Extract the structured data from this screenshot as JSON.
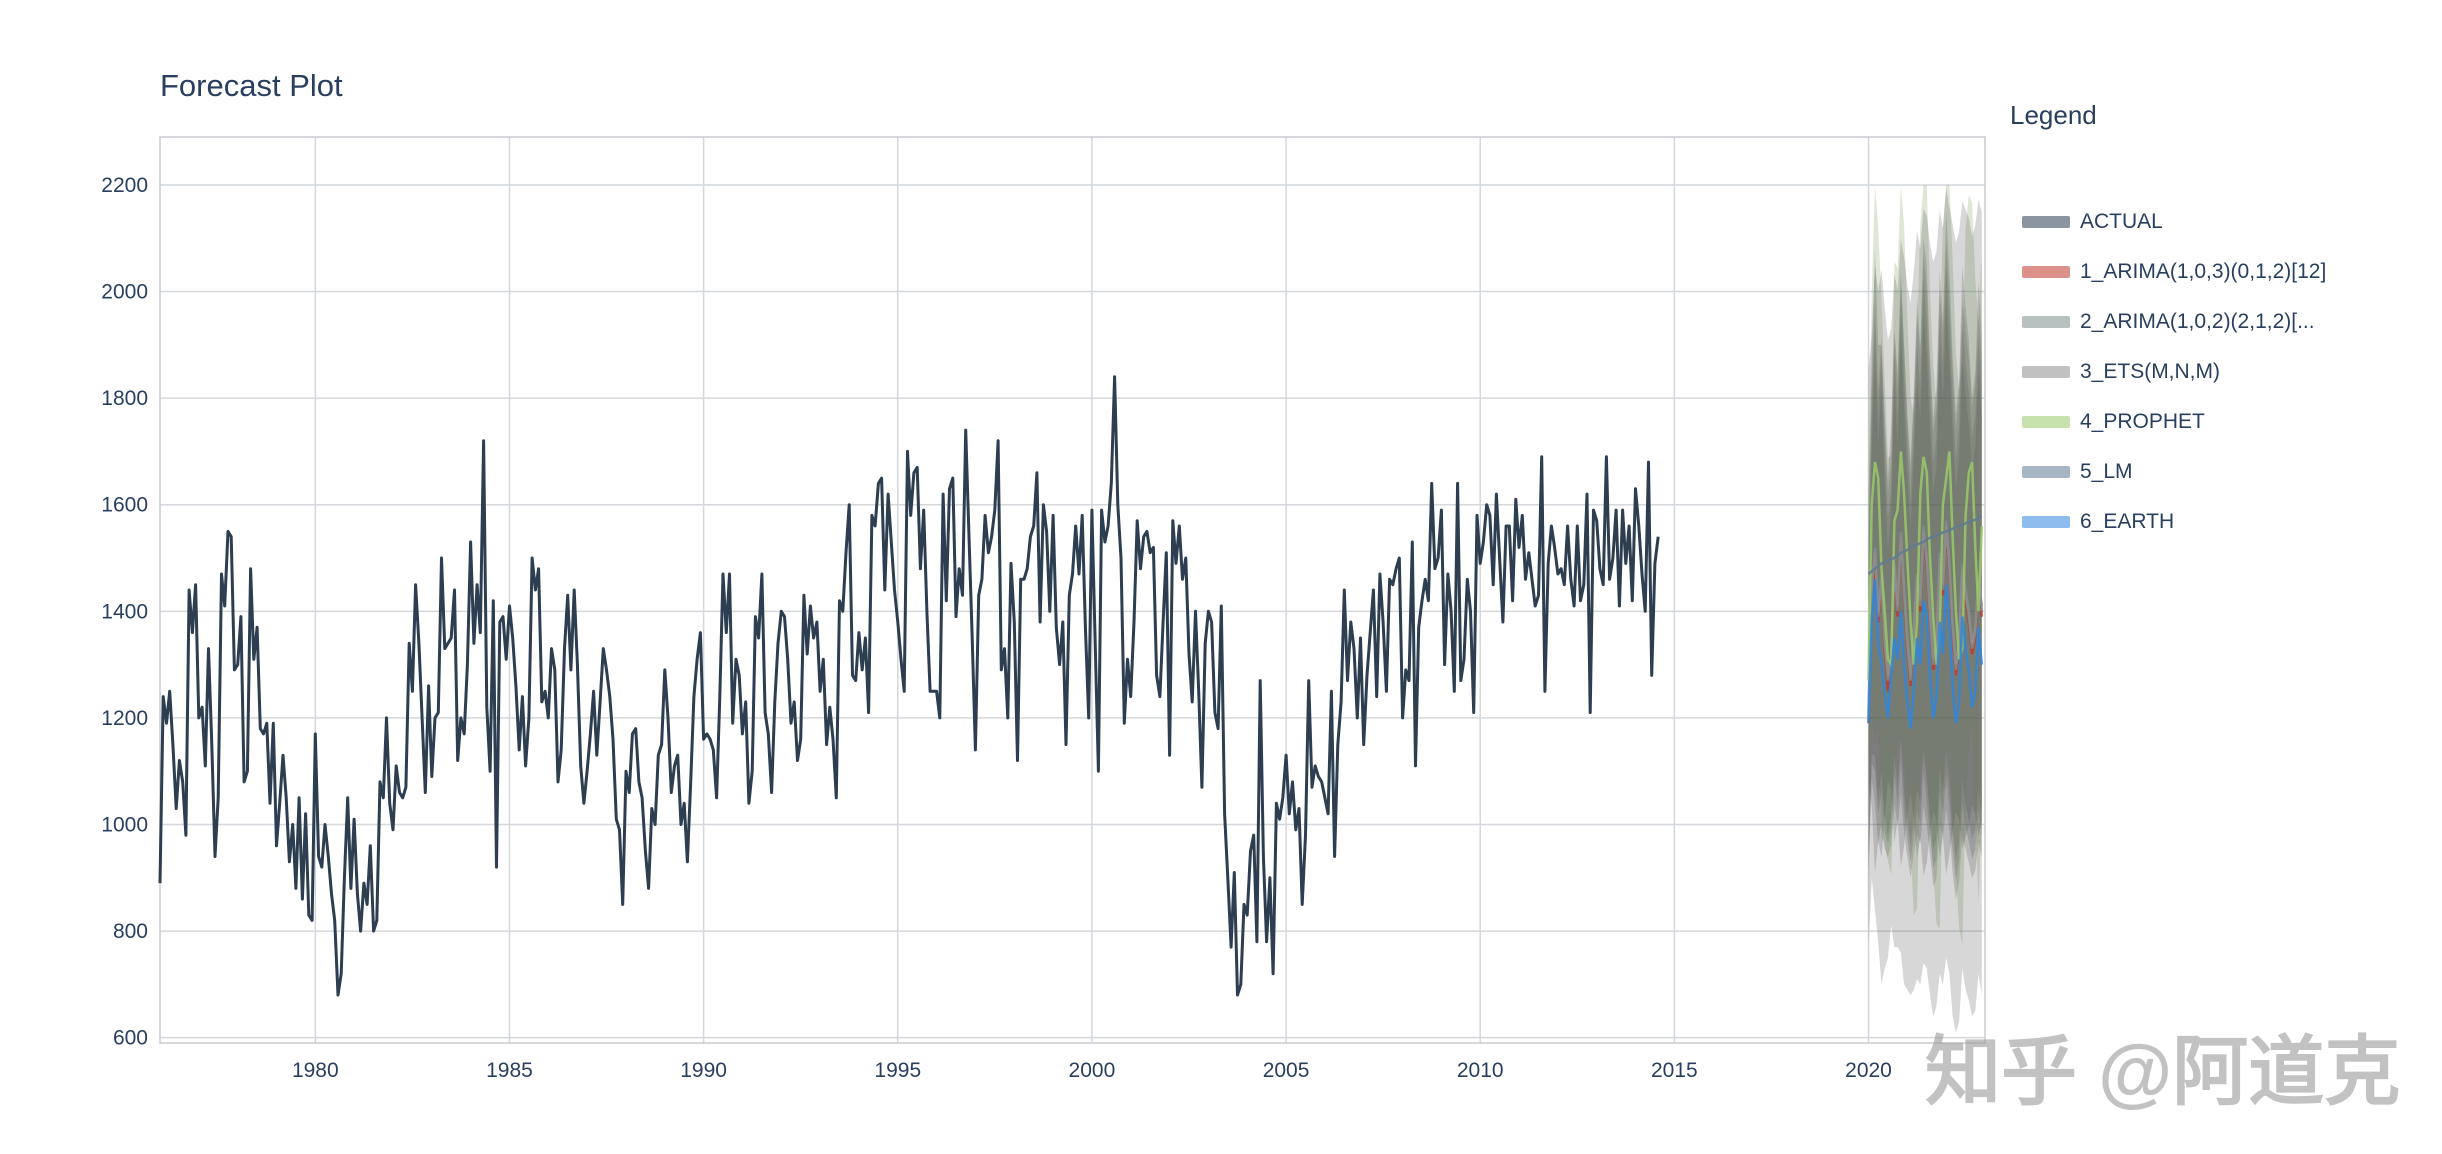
{
  "chart_data": {
    "type": "line",
    "title": "Forecast Plot",
    "xlabel": "",
    "ylabel": "",
    "xlim": [
      1976.0,
      2023.0
    ],
    "ylim": [
      590,
      2290
    ],
    "x_ticks": [
      1980,
      1985,
      1990,
      1995,
      2000,
      2005,
      2010,
      2015,
      2020
    ],
    "y_ticks": [
      600,
      800,
      1000,
      1200,
      1400,
      1600,
      1800,
      2000,
      2200
    ],
    "grid": true,
    "legend_placement": "right",
    "legend_title": "Legend",
    "actual": {
      "name": "ACTUAL",
      "color": "#2c3e50",
      "x_start": 1976.0,
      "x_step_months": 1,
      "values": [
        890,
        1240,
        1190,
        1250,
        1150,
        1030,
        1120,
        1080,
        980,
        1440,
        1360,
        1450,
        1200,
        1220,
        1110,
        1330,
        1150,
        940,
        1050,
        1470,
        1410,
        1550,
        1540,
        1290,
        1300,
        1390,
        1080,
        1100,
        1480,
        1310,
        1370,
        1180,
        1170,
        1190,
        1040,
        1190,
        960,
        1040,
        1130,
        1050,
        930,
        1000,
        880,
        1050,
        860,
        1020,
        830,
        820,
        1170,
        940,
        920,
        1000,
        940,
        870,
        820,
        680,
        720,
        900,
        1050,
        880,
        1010,
        870,
        800,
        890,
        850,
        960,
        800,
        820,
        1080,
        1050,
        1200,
        1040,
        990,
        1110,
        1060,
        1050,
        1070,
        1340,
        1250,
        1450,
        1340,
        1200,
        1060,
        1260,
        1090,
        1200,
        1210,
        1500,
        1330,
        1340,
        1350,
        1440,
        1120,
        1200,
        1170,
        1300,
        1530,
        1340,
        1450,
        1360,
        1720,
        1220,
        1100,
        1420,
        920,
        1380,
        1390,
        1310,
        1410,
        1350,
        1260,
        1140,
        1240,
        1110,
        1200,
        1500,
        1440,
        1480,
        1230,
        1250,
        1200,
        1330,
        1290,
        1080,
        1140,
        1330,
        1430,
        1290,
        1440,
        1300,
        1110,
        1040,
        1100,
        1170,
        1250,
        1130,
        1230,
        1330,
        1290,
        1240,
        1160,
        1010,
        990,
        850,
        1100,
        1060,
        1170,
        1180,
        1080,
        1050,
        950,
        880,
        1030,
        1000,
        1130,
        1150,
        1290,
        1200,
        1060,
        1110,
        1130,
        1000,
        1040,
        930,
        1080,
        1240,
        1310,
        1360,
        1160,
        1170,
        1160,
        1140,
        1050,
        1240,
        1470,
        1360,
        1470,
        1190,
        1310,
        1280,
        1170,
        1230,
        1040,
        1100,
        1390,
        1350,
        1470,
        1210,
        1170,
        1060,
        1230,
        1340,
        1400,
        1390,
        1310,
        1190,
        1230,
        1120,
        1160,
        1430,
        1320,
        1410,
        1350,
        1380,
        1250,
        1310,
        1150,
        1220,
        1160,
        1050,
        1420,
        1400,
        1510,
        1600,
        1280,
        1270,
        1360,
        1290,
        1350,
        1210,
        1580,
        1560,
        1640,
        1650,
        1440,
        1620,
        1530,
        1440,
        1380,
        1310,
        1250,
        1700,
        1580,
        1660,
        1670,
        1480,
        1590,
        1400,
        1250,
        1250,
        1250,
        1200,
        1620,
        1420,
        1630,
        1650,
        1390,
        1480,
        1430,
        1740,
        1540,
        1350,
        1140,
        1430,
        1460,
        1580,
        1510,
        1540,
        1590,
        1720,
        1290,
        1330,
        1200,
        1490,
        1380,
        1120,
        1460,
        1460,
        1480,
        1540,
        1560,
        1660,
        1380,
        1600,
        1550,
        1400,
        1580,
        1370,
        1300,
        1380,
        1150,
        1430,
        1470,
        1560,
        1470,
        1580,
        1370,
        1200,
        1590,
        1340,
        1100,
        1590,
        1530,
        1560,
        1640,
        1840,
        1600,
        1500,
        1190,
        1310,
        1240,
        1380,
        1570,
        1480,
        1540,
        1550,
        1510,
        1520,
        1280,
        1240,
        1380,
        1510,
        1130,
        1570,
        1490,
        1560,
        1460,
        1500,
        1320,
        1230,
        1400,
        1250,
        1070,
        1340,
        1400,
        1380,
        1210,
        1180,
        1410,
        1020,
        900,
        770,
        910,
        680,
        700,
        850,
        830,
        950,
        980,
        780,
        1270,
        940,
        780,
        900,
        720,
        1040,
        1010,
        1050,
        1130,
        1020,
        1080,
        990,
        1030,
        850,
        980,
        1270,
        1070,
        1110,
        1090,
        1080,
        1050,
        1020,
        1250,
        940,
        1150,
        1230,
        1440,
        1270,
        1380,
        1330,
        1200,
        1350,
        1150,
        1280,
        1360,
        1440,
        1240,
        1470,
        1380,
        1250,
        1460,
        1450,
        1480,
        1500,
        1200,
        1290,
        1270,
        1530,
        1110,
        1370,
        1420,
        1460,
        1420,
        1640,
        1480,
        1500,
        1590,
        1300,
        1470,
        1400,
        1250,
        1640,
        1270,
        1310,
        1460,
        1400,
        1210,
        1580,
        1490,
        1530,
        1600,
        1580,
        1450,
        1620,
        1500,
        1380,
        1560,
        1560,
        1420,
        1610,
        1520,
        1580,
        1460,
        1510,
        1460,
        1410,
        1430,
        1690,
        1250,
        1490,
        1560,
        1520,
        1470,
        1480,
        1450,
        1560,
        1460,
        1410,
        1560,
        1420,
        1450,
        1620,
        1210,
        1590,
        1570,
        1480,
        1450,
        1690,
        1460,
        1500,
        1590,
        1410,
        1590,
        1490,
        1560,
        1420,
        1630,
        1560,
        1470,
        1400,
        1680,
        1280,
        1490,
        1540
      ]
    },
    "forecast_series": [
      {
        "name": "1_ARIMA(1,0,3)(0,1,2)[12]",
        "color": "#c0392b",
        "values": [
          1190,
          1420,
          1500,
          1380,
          1460,
          1330,
          1250,
          1300,
          1480,
          1390,
          1540,
          1420,
          1330,
          1260,
          1350,
          1450,
          1400,
          1550,
          1480,
          1380,
          1290,
          1320,
          1500,
          1430,
          1560,
          1470,
          1360,
          1280,
          1330,
          1480,
          1420,
          1380,
          1320,
          1350,
          1460,
          1390
        ]
      },
      {
        "name": "2_ARIMA(1,0,2)(2,1,2)[...",
        "color": "#7f8c8d",
        "values": [
          1200,
          1440,
          1520,
          1400,
          1470,
          1340,
          1270,
          1310,
          1490,
          1400,
          1550,
          1430,
          1340,
          1270,
          1360,
          1460,
          1410,
          1560,
          1490,
          1390,
          1300,
          1330,
          1510,
          1440,
          1570,
          1480,
          1370,
          1290,
          1340,
          1490,
          1430,
          1390,
          1330,
          1360,
          1470,
          1400
        ]
      },
      {
        "name": "3_ETS(M,N,M)",
        "color": "#8e8e8e",
        "values": [
          1210,
          1450,
          1510,
          1390,
          1460,
          1350,
          1280,
          1320,
          1480,
          1410,
          1540,
          1440,
          1350,
          1280,
          1370,
          1470,
          1420,
          1550,
          1500,
          1400,
          1310,
          1340,
          1500,
          1450,
          1560,
          1490,
          1380,
          1300,
          1350,
          1480,
          1440,
          1400,
          1340,
          1370,
          1460,
          1410
        ]
      },
      {
        "name": "4_PROPHET",
        "color": "#9aca6a",
        "values": [
          1270,
          1600,
          1680,
          1650,
          1480,
          1400,
          1310,
          1300,
          1570,
          1590,
          1700,
          1620,
          1500,
          1380,
          1300,
          1380,
          1620,
          1690,
          1660,
          1500,
          1390,
          1300,
          1360,
          1600,
          1650,
          1700,
          1540,
          1400,
          1310,
          1330,
          1580,
          1660,
          1680,
          1520,
          1400,
          1560
        ]
      },
      {
        "name": "5_LM",
        "color": "#5f7a94",
        "values": [
          1470,
          1475,
          1480,
          1485,
          1490,
          1492,
          1495,
          1498,
          1500,
          1505,
          1510,
          1512,
          1515,
          1520,
          1522,
          1525,
          1528,
          1530,
          1535,
          1538,
          1540,
          1542,
          1545,
          1548,
          1550,
          1552,
          1555,
          1558,
          1560,
          1562,
          1565,
          1568,
          1570,
          1572,
          1575,
          1578
        ]
      },
      {
        "name": "6_EARTH",
        "color": "#2e86de",
        "values": [
          1190,
          1380,
          1460,
          1340,
          1300,
          1250,
          1200,
          1280,
          1350,
          1310,
          1400,
          1300,
          1230,
          1180,
          1250,
          1350,
          1300,
          1420,
          1390,
          1280,
          1200,
          1240,
          1380,
          1320,
          1450,
          1380,
          1260,
          1190,
          1230,
          1390,
          1330,
          1290,
          1220,
          1250,
          1370,
          1300
        ]
      }
    ],
    "forecast_x_start": 2020.0,
    "forecast_interval_band": {
      "color": "#555555",
      "lower_min": 600,
      "upper_max": 2200
    },
    "forecast_interval_half_width": [
      420,
      480,
      620,
      560,
      600,
      520,
      450,
      470,
      580,
      540,
      640,
      600,
      540,
      500,
      560,
      640,
      600,
      680,
      660,
      600,
      560,
      580,
      660,
      620,
      700,
      660,
      620,
      580,
      600,
      660,
      640,
      620,
      580,
      600,
      650,
      620
    ]
  },
  "watermark": "知乎 @阿道克"
}
